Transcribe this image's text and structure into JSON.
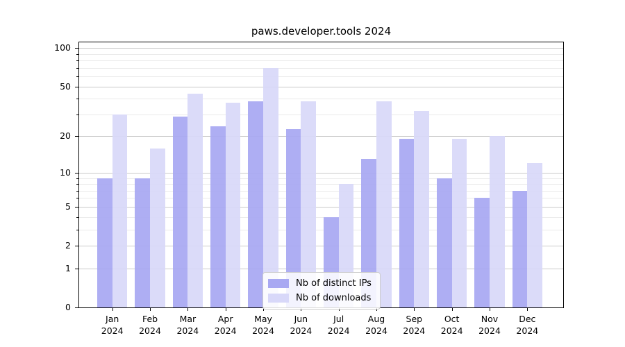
{
  "chart_data": {
    "type": "bar",
    "title": "paws.developer.tools 2024",
    "categories": [
      "Jan",
      "Feb",
      "Mar",
      "Apr",
      "May",
      "Jun",
      "Jul",
      "Aug",
      "Sep",
      "Oct",
      "Nov",
      "Dec"
    ],
    "year_label": "2024",
    "series": [
      {
        "name": "Nb of distinct IPs",
        "color": "#a8a8f2",
        "values": [
          9,
          9,
          29,
          24,
          38,
          23,
          4,
          13,
          19,
          9,
          6,
          7
        ]
      },
      {
        "name": "Nb of downloads",
        "color": "#d8d8f9",
        "values": [
          30,
          16,
          44,
          37,
          70,
          38,
          8,
          38,
          32,
          19,
          20,
          12
        ]
      }
    ],
    "y_scale": "log1p",
    "ylim": [
      0,
      113
    ],
    "y_major_ticks": [
      0,
      1,
      2,
      5,
      10,
      20,
      50,
      100
    ],
    "y_minor_ticks": [
      3,
      4,
      6,
      7,
      8,
      9,
      30,
      40,
      60,
      70,
      80,
      90
    ],
    "grid": true,
    "legend_position": "lower center",
    "colors": {
      "grid_major": "#c9c9c9",
      "grid_minor": "#eaeaea",
      "spine": "#000000",
      "background": "#ffffff"
    }
  }
}
